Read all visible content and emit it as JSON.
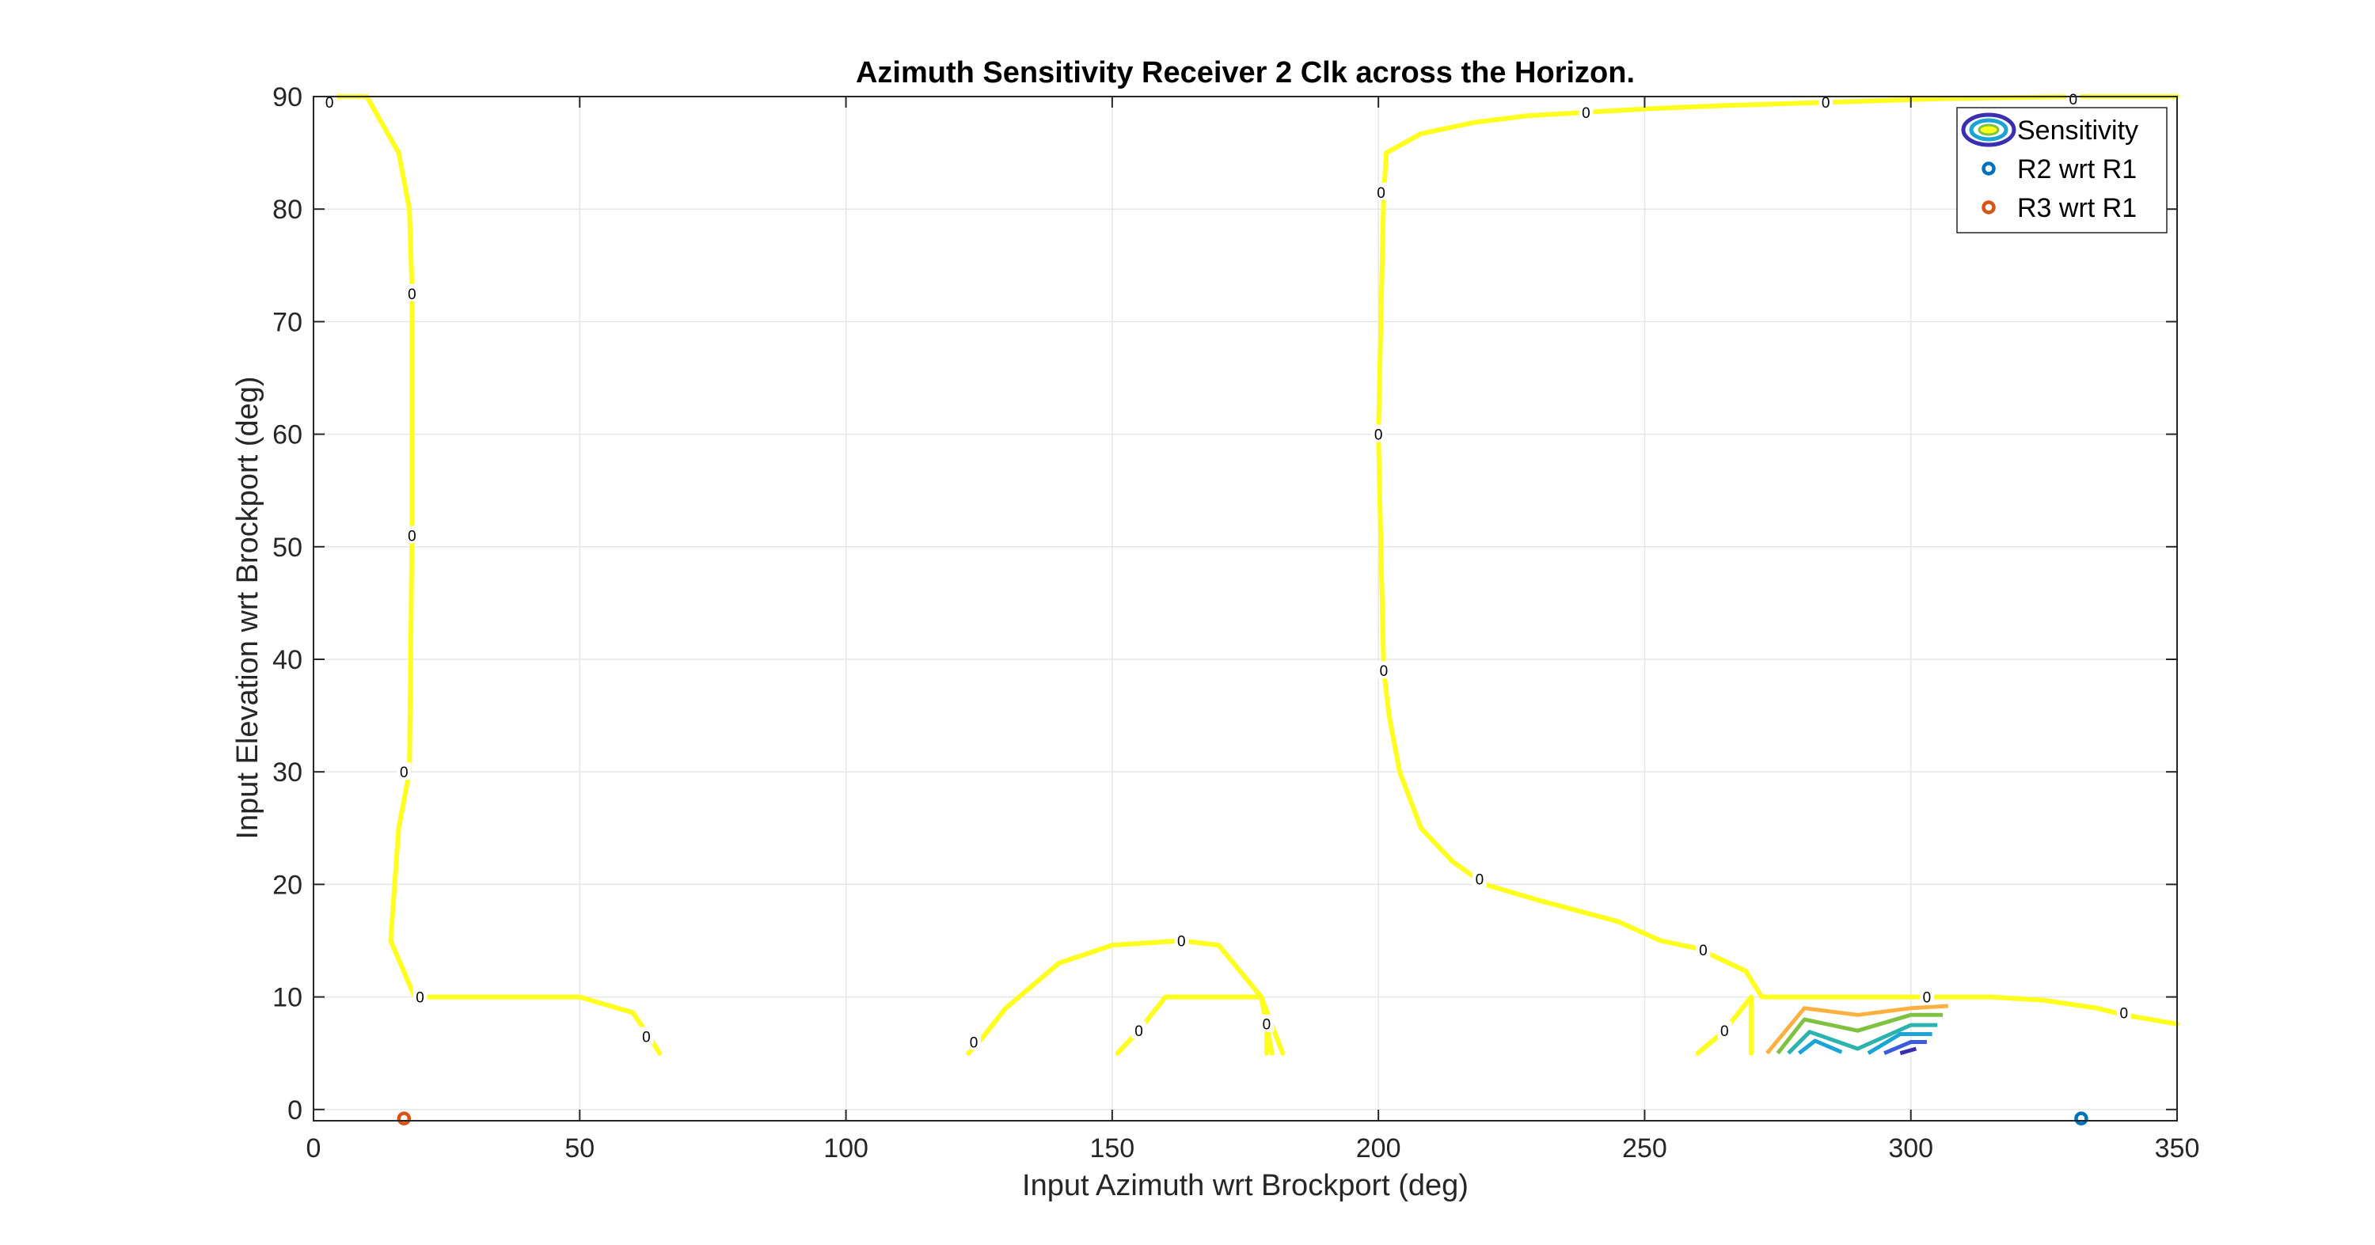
{
  "chart_data": {
    "type": "contour",
    "title": "Azimuth Sensitivity Receiver 2 Clk across the Horizon.",
    "xlabel": "Input Azimuth wrt Brockport (deg)",
    "ylabel": "Input Elevation wrt Brockport (deg)",
    "xlim": [
      0,
      350
    ],
    "ylim": [
      -1,
      90
    ],
    "xticks": [
      0,
      50,
      100,
      150,
      200,
      250,
      300,
      350
    ],
    "yticks": [
      0,
      10,
      20,
      30,
      40,
      50,
      60,
      70,
      80,
      90
    ],
    "grid": true,
    "legend": {
      "placement": "top-right",
      "entries": [
        {
          "label": "Sensitivity",
          "type": "contour"
        },
        {
          "label": "R2 wrt R1",
          "type": "marker",
          "color": "#0072bd"
        },
        {
          "label": "R3 wrt R1",
          "type": "marker",
          "color": "#d95319"
        }
      ]
    },
    "contour_zero_lines": [
      [
        [
          3,
          90
        ],
        [
          10,
          90
        ],
        [
          16,
          85
        ],
        [
          18,
          80
        ],
        [
          18.5,
          73
        ],
        [
          18.5,
          51
        ],
        [
          18,
          30
        ],
        [
          16,
          25
        ],
        [
          14.5,
          15
        ],
        [
          19,
          10
        ],
        [
          40,
          10
        ],
        [
          50,
          10
        ],
        [
          60,
          8.6
        ],
        [
          63,
          6.5
        ],
        [
          65,
          5
        ]
      ],
      [
        [
          123,
          5
        ],
        [
          125,
          6
        ],
        [
          130,
          9
        ],
        [
          140,
          13
        ],
        [
          150,
          14.6
        ],
        [
          163,
          15
        ],
        [
          170,
          14.6
        ],
        [
          178,
          10
        ],
        [
          180,
          5
        ]
      ],
      [
        [
          151,
          5
        ],
        [
          153,
          6
        ],
        [
          155,
          7
        ],
        [
          160,
          10
        ],
        [
          178,
          10
        ]
      ],
      [
        [
          178,
          10
        ],
        [
          179,
          7.6
        ],
        [
          179,
          5
        ]
      ],
      [
        [
          178,
          10
        ],
        [
          182,
          5
        ]
      ],
      [
        [
          201.5,
          85
        ],
        [
          201,
          81.5
        ],
        [
          200,
          60
        ],
        [
          201,
          39
        ],
        [
          202,
          35
        ],
        [
          204,
          30
        ],
        [
          208,
          25
        ],
        [
          214,
          22
        ],
        [
          220,
          20
        ],
        [
          230,
          18.6
        ],
        [
          245,
          16.7
        ],
        [
          253,
          15
        ],
        [
          260,
          14.3
        ],
        [
          269,
          12.3
        ],
        [
          272,
          10
        ],
        [
          300,
          10
        ],
        [
          315,
          10
        ],
        [
          325,
          9.7
        ],
        [
          335,
          9
        ],
        [
          340,
          8.4
        ],
        [
          350,
          7.6
        ]
      ],
      [
        [
          201.5,
          85
        ],
        [
          208,
          86.7
        ],
        [
          218,
          87.7
        ],
        [
          228,
          88.3
        ],
        [
          239,
          88.6
        ],
        [
          250,
          88.9
        ],
        [
          265,
          89.2
        ],
        [
          285,
          89.5
        ],
        [
          305,
          89.8
        ],
        [
          330,
          90
        ],
        [
          350,
          90
        ]
      ],
      [
        [
          260,
          5
        ],
        [
          265,
          7
        ],
        [
          270,
          10
        ],
        [
          270,
          5
        ]
      ]
    ],
    "contour_zero_labels": [
      [
        3,
        89.5
      ],
      [
        18.5,
        72.5
      ],
      [
        18.5,
        51
      ],
      [
        17,
        30
      ],
      [
        20,
        10
      ],
      [
        62.5,
        6.5
      ],
      [
        124,
        6
      ],
      [
        155,
        7
      ],
      [
        163,
        15
      ],
      [
        179,
        7.6
      ],
      [
        200.5,
        81.5
      ],
      [
        200,
        60
      ],
      [
        201,
        39
      ],
      [
        219,
        20.5
      ],
      [
        261,
        14.2
      ],
      [
        265,
        7
      ],
      [
        239,
        88.6
      ],
      [
        284,
        89.5
      ],
      [
        330.5,
        89.8
      ],
      [
        303,
        10
      ],
      [
        340,
        8.6
      ]
    ],
    "contour_zero_label_text": "0",
    "contour_other_levels": [
      {
        "color": "#fcb040",
        "points": [
          [
            273,
            5
          ],
          [
            280,
            9
          ],
          [
            290,
            8.4
          ],
          [
            300,
            9
          ],
          [
            307,
            9.2
          ]
        ]
      },
      {
        "color": "#7fc241",
        "points": [
          [
            275,
            5
          ],
          [
            280,
            8
          ],
          [
            290,
            7
          ],
          [
            300,
            8.4
          ],
          [
            306,
            8.4
          ]
        ]
      },
      {
        "color": "#2bb3ae",
        "points": [
          [
            277,
            5
          ],
          [
            281,
            6.9
          ],
          [
            290,
            5.4
          ],
          [
            300,
            7.5
          ],
          [
            305,
            7.5
          ]
        ]
      },
      {
        "color": "#1aa5d6",
        "points": [
          [
            279,
            5
          ],
          [
            282,
            6.1
          ],
          [
            287,
            5.1
          ]
        ]
      },
      {
        "color": "#1aa5d6",
        "points": [
          [
            292,
            5
          ],
          [
            298,
            6.7
          ],
          [
            304,
            6.7
          ]
        ]
      },
      {
        "color": "#3a5ce0",
        "points": [
          [
            295,
            5
          ],
          [
            300,
            6
          ],
          [
            303,
            6
          ]
        ]
      },
      {
        "color": "#3a2fb0",
        "points": [
          [
            298,
            5
          ],
          [
            301,
            5.4
          ]
        ]
      }
    ],
    "markers": [
      {
        "name": "R2 wrt R1",
        "x": 332,
        "y": -0.8,
        "color": "#0072bd"
      },
      {
        "name": "R3 wrt R1",
        "x": 17,
        "y": -0.8,
        "color": "#d95319"
      }
    ]
  }
}
